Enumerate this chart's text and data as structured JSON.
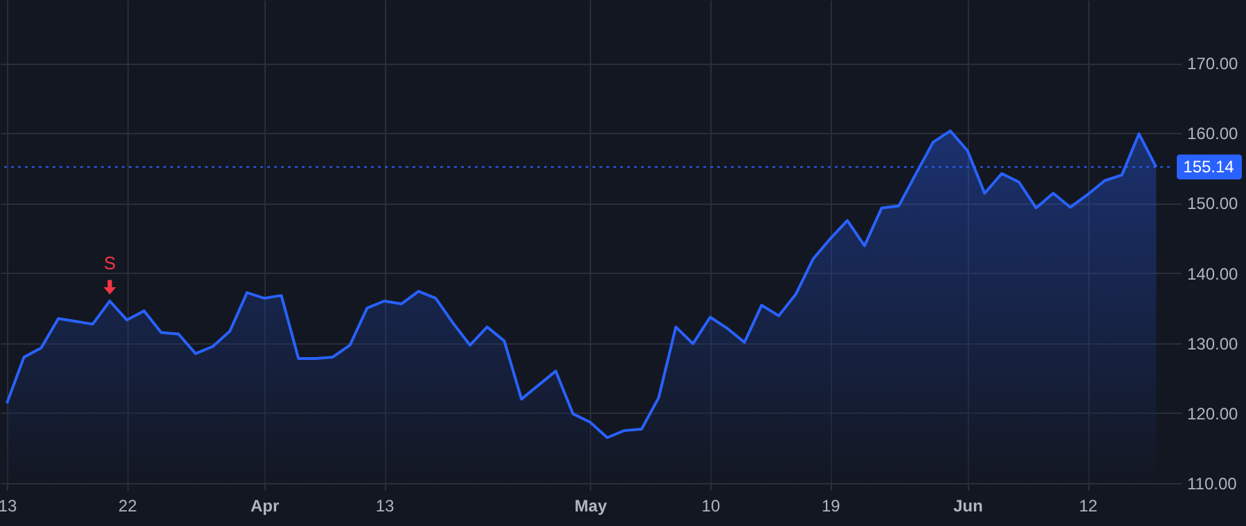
{
  "chart_data": {
    "type": "area",
    "categories": [
      "13",
      null,
      null,
      null,
      null,
      null,
      null,
      "22",
      null,
      null,
      null,
      null,
      null,
      null,
      null,
      "Apr",
      null,
      null,
      null,
      null,
      null,
      null,
      "13",
      null,
      null,
      null,
      null,
      null,
      null,
      null,
      null,
      null,
      null,
      null,
      "May",
      null,
      null,
      null,
      null,
      null,
      null,
      "10",
      null,
      null,
      null,
      null,
      null,
      null,
      "19",
      null,
      null,
      null,
      null,
      null,
      null,
      null,
      "Jun",
      null,
      null,
      null,
      null,
      null,
      null,
      "12",
      null,
      null,
      null,
      null
    ],
    "series": [
      {
        "color": "#2962ff",
        "values": [
          121.4,
          128.0,
          129.3,
          133.5,
          133.1,
          132.7,
          136.0,
          133.3,
          134.6,
          131.5,
          131.3,
          128.5,
          129.5,
          131.7,
          137.2,
          136.4,
          136.8,
          127.8,
          127.8,
          128.0,
          129.7,
          135.0,
          136.0,
          135.6,
          137.4,
          136.4,
          132.9,
          129.7,
          132.3,
          130.3,
          122.0,
          124.0,
          126.0,
          119.9,
          118.7,
          116.5,
          117.5,
          117.7,
          122.2,
          132.3,
          129.9,
          133.7,
          132.1,
          130.1,
          135.4,
          133.9,
          137.0,
          142.0,
          144.9,
          147.5,
          143.9,
          149.3,
          149.6,
          154.2,
          158.7,
          160.3,
          157.5,
          151.4,
          154.2,
          153.0,
          149.3,
          151.4,
          149.4,
          151.2,
          153.2,
          154.0,
          159.9,
          155.14
        ]
      }
    ],
    "ylim": [
      110,
      179
    ],
    "yticks": [
      {
        "value": 110,
        "label": "110.00"
      },
      {
        "value": 120,
        "label": "120.00"
      },
      {
        "value": 130,
        "label": "130.00"
      },
      {
        "value": 140,
        "label": "140.00"
      },
      {
        "value": 150,
        "label": "150.00"
      },
      {
        "value": 160,
        "label": "160.00"
      },
      {
        "value": 170,
        "label": "170.00"
      }
    ],
    "ref_lines": [
      {
        "axis": "y",
        "value": 155.14,
        "label": "155.14",
        "color": "#2962ff",
        "line_style": "dotted"
      }
    ],
    "annotations": [
      {
        "text": "S",
        "y": 136.0
      }
    ],
    "grid": true
  }
}
